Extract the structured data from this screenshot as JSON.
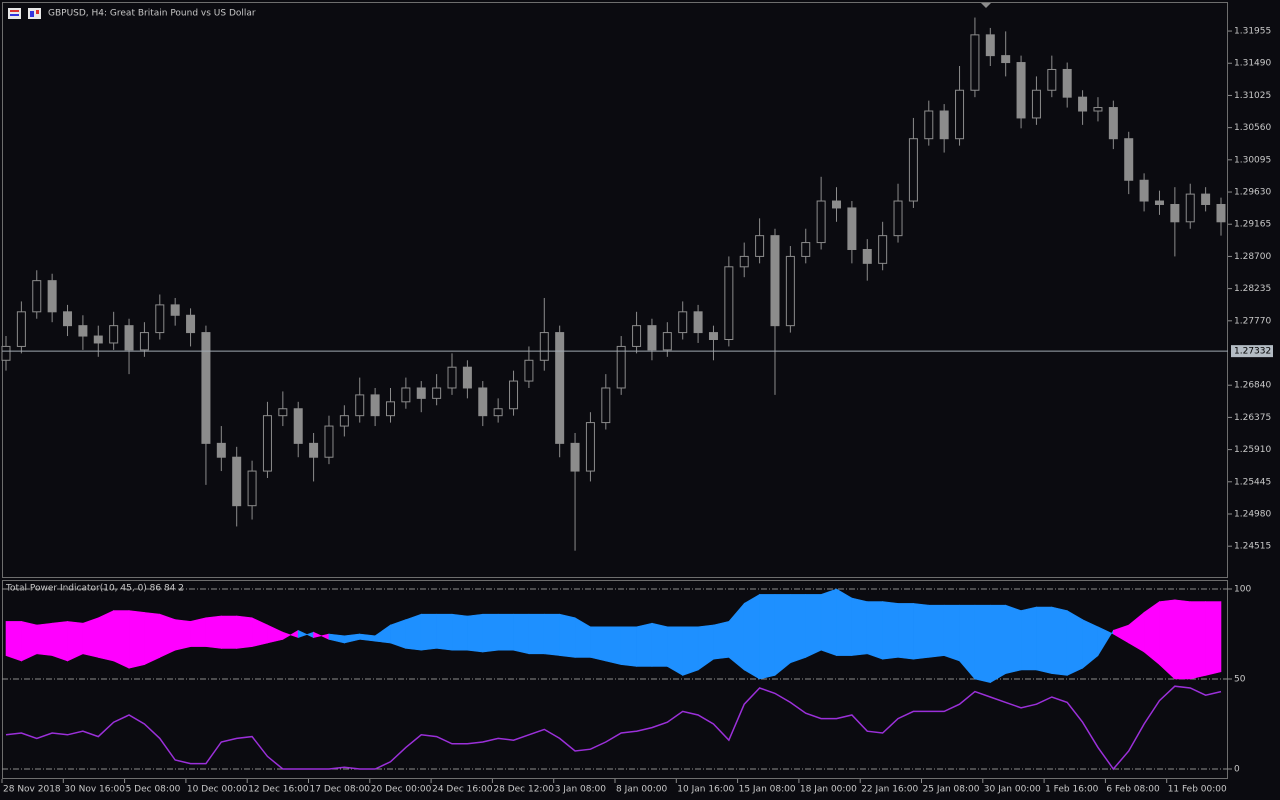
{
  "chart_data": [
    {
      "type": "candlestick",
      "title": "GBPUSD, H4:  Great Britain Pound vs US Dollar",
      "color": "#8c8c8c",
      "open": [
        1.272,
        1.274,
        1.279,
        1.2835,
        1.279,
        1.277,
        1.2755,
        1.2745,
        1.277,
        1.2735,
        1.276,
        1.28,
        1.2785,
        1.276,
        1.26,
        1.258,
        1.251,
        1.256,
        1.264,
        1.265,
        1.26,
        1.258,
        1.2625,
        1.264,
        1.267,
        1.264,
        1.266,
        1.268,
        1.2665,
        1.268,
        1.271,
        1.268,
        1.264,
        1.265,
        1.269,
        1.272,
        1.276,
        1.26,
        1.256,
        1.263,
        1.268,
        1.274,
        1.277,
        1.2735,
        1.276,
        1.279,
        1.276,
        1.275,
        1.2855,
        1.287,
        1.29,
        1.277,
        1.287,
        1.289,
        1.295,
        1.294,
        1.288,
        1.286,
        1.29,
        1.295,
        1.304,
        1.308,
        1.304,
        1.311,
        1.319,
        1.316,
        1.315,
        1.307,
        1.311,
        1.314,
        1.31,
        1.308,
        1.3085,
        1.304,
        1.298,
        1.295,
        1.2945,
        1.292,
        1.296,
        1.2945
      ],
      "high": [
        1.2755,
        1.2805,
        1.285,
        1.2845,
        1.28,
        1.2785,
        1.277,
        1.279,
        1.278,
        1.2775,
        1.2815,
        1.281,
        1.2795,
        1.277,
        1.2625,
        1.2595,
        1.2575,
        1.266,
        1.2675,
        1.266,
        1.2615,
        1.264,
        1.2655,
        1.2695,
        1.268,
        1.268,
        1.2695,
        1.269,
        1.27,
        1.273,
        1.272,
        1.269,
        1.2665,
        1.2705,
        1.274,
        1.281,
        1.277,
        1.2615,
        1.2645,
        1.27,
        1.2755,
        1.279,
        1.278,
        1.2775,
        1.2805,
        1.28,
        1.277,
        1.287,
        1.289,
        1.2925,
        1.291,
        1.2885,
        1.291,
        1.2985,
        1.297,
        1.295,
        1.2895,
        1.292,
        1.2975,
        1.307,
        1.3095,
        1.309,
        1.3145,
        1.3215,
        1.32,
        1.3195,
        1.316,
        1.313,
        1.316,
        1.315,
        1.311,
        1.31,
        1.3095,
        1.305,
        1.299,
        1.2965,
        1.297,
        1.2975,
        1.297,
        1.2955
      ],
      "low": [
        1.2705,
        1.273,
        1.278,
        1.2775,
        1.2755,
        1.2735,
        1.2725,
        1.2735,
        1.27,
        1.2725,
        1.275,
        1.277,
        1.274,
        1.254,
        1.256,
        1.248,
        1.249,
        1.255,
        1.2625,
        1.258,
        1.2545,
        1.257,
        1.261,
        1.263,
        1.2625,
        1.263,
        1.265,
        1.2645,
        1.2655,
        1.267,
        1.2665,
        1.2625,
        1.263,
        1.264,
        1.268,
        1.2705,
        1.258,
        1.2445,
        1.2545,
        1.262,
        1.267,
        1.273,
        1.272,
        1.2725,
        1.275,
        1.2745,
        1.272,
        1.274,
        1.284,
        1.286,
        1.267,
        1.276,
        1.286,
        1.288,
        1.292,
        1.286,
        1.2835,
        1.285,
        1.289,
        1.294,
        1.303,
        1.302,
        1.303,
        1.31,
        1.3145,
        1.313,
        1.3055,
        1.306,
        1.31,
        1.3085,
        1.306,
        1.3065,
        1.3025,
        1.296,
        1.2935,
        1.293,
        1.287,
        1.291,
        1.2935,
        1.29
      ],
      "close": [
        1.274,
        1.279,
        1.2835,
        1.279,
        1.277,
        1.2755,
        1.2745,
        1.277,
        1.2735,
        1.276,
        1.28,
        1.2785,
        1.276,
        1.26,
        1.258,
        1.251,
        1.256,
        1.264,
        1.265,
        1.26,
        1.258,
        1.2625,
        1.264,
        1.267,
        1.264,
        1.266,
        1.268,
        1.2665,
        1.268,
        1.271,
        1.268,
        1.264,
        1.265,
        1.269,
        1.272,
        1.276,
        1.26,
        1.256,
        1.263,
        1.268,
        1.274,
        1.277,
        1.2735,
        1.276,
        1.279,
        1.276,
        1.275,
        1.2855,
        1.287,
        1.29,
        1.277,
        1.287,
        1.289,
        1.295,
        1.294,
        1.288,
        1.286,
        1.29,
        1.295,
        1.304,
        1.308,
        1.304,
        1.311,
        1.319,
        1.316,
        1.315,
        1.307,
        1.311,
        1.314,
        1.31,
        1.308,
        1.3085,
        1.304,
        1.298,
        1.295,
        1.2945,
        1.292,
        1.296,
        1.2945,
        1.292
      ],
      "ylim": [
        1.2407,
        1.3236
      ],
      "yticks": [
        1.31955,
        {
          "value": 1.3149,
          "label": "1.31490"
        },
        1.31025,
        {
          "value": 1.3056,
          "label": "1.30560"
        },
        1.30095,
        {
          "value": 1.2963,
          "label": "1.29630"
        },
        1.29165,
        {
          "value": 1.287,
          "label": "1.28700"
        },
        1.28235,
        {
          "value": 1.2777,
          "label": "1.27770"
        },
        {
          "value": 1.2684,
          "label": "1.26840"
        },
        1.26375,
        {
          "value": 1.2591,
          "label": "1.25910"
        },
        1.25445,
        {
          "value": 1.2498,
          "label": "1.24980"
        },
        1.24515
      ],
      "current_price": 1.27332,
      "x_labels": [
        "28 Nov 2018",
        "30 Nov 16:00",
        "5 Dec 08:00",
        "10 Dec 00:00",
        "12 Dec 16:00",
        "17 Dec 08:00",
        "20 Dec 00:00",
        "24 Dec 16:00",
        "28 Dec 12:00",
        "3 Jan 08:00",
        "8 Jan 00:00",
        "10 Jan 16:00",
        "15 Jan 08:00",
        "18 Jan 00:00",
        "22 Jan 16:00",
        "25 Jan 08:00",
        "30 Jan 00:00",
        "1 Feb 16:00",
        "6 Feb 08:00",
        "11 Feb 00:00"
      ]
    },
    {
      "type": "band",
      "title": "Total Power Indicator(10, 45, 0) 86 84 2",
      "series": [
        {
          "color": "#1e90ff",
          "values": [
            63,
            60,
            64,
            63,
            60,
            64,
            62,
            60,
            56,
            58,
            62,
            66,
            68,
            68,
            67,
            67,
            68,
            70,
            72,
            77,
            73,
            75,
            74,
            75,
            74,
            80,
            83,
            86,
            86,
            86,
            85,
            86,
            86,
            86,
            86,
            86,
            86,
            84,
            79,
            79,
            79,
            79,
            81,
            79,
            79,
            79,
            80,
            82,
            92,
            97,
            97,
            97,
            97,
            97,
            100,
            95,
            93,
            93,
            92,
            92,
            91,
            91,
            91,
            91,
            91,
            91,
            88,
            90,
            90,
            88,
            83,
            79,
            75,
            70,
            65,
            58,
            50,
            50,
            52,
            54
          ]
        },
        {
          "color": "#ff00ff",
          "values": [
            82,
            82,
            80,
            81,
            82,
            81,
            84,
            88,
            88,
            87,
            86,
            83,
            82,
            84,
            85,
            85,
            84,
            80,
            76,
            73,
            76,
            72,
            70,
            72,
            71,
            70,
            67,
            66,
            67,
            66,
            66,
            65,
            66,
            66,
            64,
            64,
            63,
            62,
            62,
            60,
            58,
            57,
            57,
            57,
            52,
            55,
            61,
            62,
            55,
            50,
            52,
            59,
            62,
            66,
            63,
            63,
            64,
            61,
            62,
            61,
            62,
            63,
            60,
            50,
            48,
            53,
            55,
            55,
            53,
            52,
            56,
            63,
            77,
            80,
            87,
            93,
            94,
            93,
            93,
            93
          ]
        },
        {
          "color": "#9b30d9",
          "values": [
            19,
            20,
            17,
            20,
            19,
            21,
            18,
            26,
            30,
            25,
            17,
            5,
            3,
            3,
            15,
            17,
            18,
            7,
            0,
            0,
            0,
            0,
            1,
            0,
            0,
            4,
            12,
            19,
            18,
            14,
            14,
            15,
            17,
            16,
            19,
            22,
            17,
            10,
            11,
            15,
            20,
            21,
            23,
            26,
            32,
            30,
            25,
            16,
            36,
            45,
            42,
            37,
            31,
            28,
            28,
            30,
            21,
            20,
            28,
            32,
            32,
            32,
            36,
            43,
            40,
            37,
            34,
            36,
            40,
            37,
            26,
            12,
            0,
            10,
            25,
            38,
            46,
            45,
            41,
            43
          ]
        }
      ],
      "ylim": [
        -5,
        105
      ],
      "yticks": [
        0,
        50,
        100
      ]
    }
  ]
}
